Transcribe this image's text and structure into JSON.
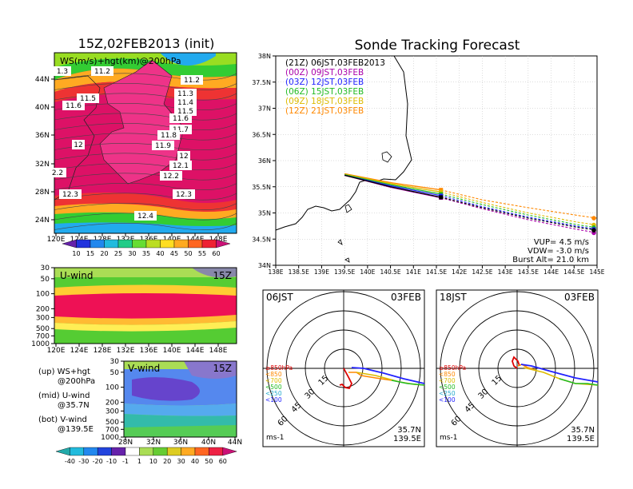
{
  "left_panel": {
    "title": "15Z,02FEB2013 (init)",
    "ws_map": {
      "label": "WS(m/s)+hgt(km)@200hPa",
      "lat_ticks": [
        "44N",
        "40N",
        "36N",
        "32N",
        "28N",
        "24N"
      ],
      "lon_ticks": [
        "120E",
        "124E",
        "128E",
        "132E",
        "136E",
        "140E",
        "144E",
        "148E"
      ],
      "height_labels": [
        "1.3",
        "11.2",
        "11.2",
        "11.3",
        "11.5",
        "11.4",
        "11.6",
        "11.5",
        "11.6",
        "11.7",
        "12",
        "11.8",
        "11.9",
        "12",
        "12.1",
        "2.2",
        "12.2",
        "12.3",
        "12.3",
        "12.4"
      ],
      "colorbar_labels": [
        "10",
        "15",
        "20",
        "25",
        "30",
        "35",
        "40",
        "45",
        "50",
        "55",
        "60"
      ]
    },
    "u_wind": {
      "label": "U-wind",
      "time": "15Z",
      "p_ticks": [
        "30",
        "50",
        "100",
        "200",
        "300",
        "500",
        "700",
        "1000"
      ],
      "lon_ticks": [
        "120E",
        "124E",
        "128E",
        "132E",
        "136E",
        "140E",
        "144E",
        "148E"
      ]
    },
    "v_wind": {
      "label": "V-wind",
      "time": "15Z",
      "p_ticks": [
        "30",
        "50",
        "100",
        "200",
        "300",
        "500",
        "700",
        "1000"
      ],
      "lat_ticks": [
        "28N",
        "32N",
        "36N",
        "40N",
        "44N"
      ],
      "legend": [
        {
          "top": "(up) WS+hgt",
          "bot": "@200hPa"
        },
        {
          "top": "(mid) U-wind",
          "bot": "@35.7N"
        },
        {
          "top": "(bot) V-wind",
          "bot": "@139.5E"
        }
      ],
      "colorbar_labels": [
        "-40",
        "-30",
        "-20",
        "-10",
        "-1",
        "1",
        "10",
        "20",
        "30",
        "40",
        "50",
        "60"
      ]
    }
  },
  "tracking": {
    "title": "Sonde Tracking Forecast",
    "lat_ticks": [
      "38N",
      "37.5N",
      "37N",
      "36.5N",
      "36N",
      "35.5N",
      "35N",
      "34.5N",
      "34N"
    ],
    "lon_ticks": [
      "138E",
      "138.5E",
      "139E",
      "139.5E",
      "140E",
      "140.5E",
      "141E",
      "141.5E",
      "142E",
      "142.5E",
      "143E",
      "143.5E",
      "144E",
      "144.5E",
      "145E"
    ],
    "legend": [
      {
        "text": "(21Z) 06JST,03FEB2013",
        "color": "#000000"
      },
      {
        "text": "(00Z) 09JST,03FEB",
        "color": "#aa00aa"
      },
      {
        "text": "(03Z) 12JST,03FEB",
        "color": "#2222ff"
      },
      {
        "text": "(06Z) 15JST,03FEB",
        "color": "#22bb22"
      },
      {
        "text": "(09Z) 18JST,03FEB",
        "color": "#ddbb00"
      },
      {
        "text": "(12Z) 21JST,03FEB",
        "color": "#ff8800"
      }
    ],
    "info": [
      "VUP= 4.5 m/s",
      "VDW= -3.0 m/s",
      "Burst Alt= 21.0 km"
    ]
  },
  "polar_left": {
    "time": "06JST",
    "date": "03FEB",
    "ring_labels": [
      "15",
      "30",
      "45",
      "60"
    ],
    "levels": [
      {
        "text": "≥850hPa",
        "color": "#dd0000"
      },
      {
        "text": "<850",
        "color": "#ff8800"
      },
      {
        "text": "<700",
        "color": "#ddbb00"
      },
      {
        "text": "<500",
        "color": "#22bb22"
      },
      {
        "text": "<250",
        "color": "#22aacc"
      },
      {
        "text": "<100",
        "color": "#2222ff"
      }
    ],
    "unit": "ms-1",
    "lat": "35.7N",
    "lon": "139.5E"
  },
  "polar_right": {
    "time": "18JST",
    "date": "03FEB",
    "ring_labels": [
      "15",
      "30",
      "45",
      "60"
    ],
    "levels": [
      {
        "text": "≥850hPa",
        "color": "#dd0000"
      },
      {
        "text": "<850",
        "color": "#ff8800"
      },
      {
        "text": "<700",
        "color": "#ddbb00"
      },
      {
        "text": "<500",
        "color": "#22bb22"
      },
      {
        "text": "<250",
        "color": "#22aacc"
      },
      {
        "text": "<100",
        "color": "#2222ff"
      }
    ],
    "unit": "ms-1",
    "lat": "35.7N",
    "lon": "139.5E"
  },
  "chart_data": [
    {
      "type": "heatmap",
      "title": "15Z,02FEB2013 (init)",
      "subtitle": "WS(m/s)+hgt(km)@200hPa",
      "x_range": [
        "120E",
        "148E"
      ],
      "y_range": [
        "22N",
        "47N"
      ],
      "color_levels": [
        10,
        15,
        20,
        25,
        30,
        35,
        40,
        45,
        50,
        55,
        60
      ]
    },
    {
      "type": "heatmap",
      "title": "U-wind",
      "x_range": [
        "120E",
        "148E"
      ],
      "ylim": [
        1000,
        30
      ]
    },
    {
      "type": "heatmap",
      "title": "V-wind",
      "x_range": [
        "28N",
        "44N"
      ],
      "ylim": [
        1000,
        30
      ],
      "color_levels": [
        -40,
        -30,
        -20,
        -10,
        -1,
        1,
        10,
        20,
        30,
        40,
        50,
        60
      ]
    },
    {
      "type": "line",
      "title": "Sonde Tracking Forecast",
      "xlim": [
        138,
        145
      ],
      "ylim": [
        34,
        38
      ],
      "series": [
        {
          "name": "(21Z) 06JST,03FEB2013",
          "color": "#000000",
          "x": [
            139.5,
            140.5,
            141.6,
            142.5,
            143.5,
            144.6,
            145.0
          ],
          "y": [
            35.72,
            35.5,
            35.3,
            35.1,
            34.9,
            34.72,
            34.67
          ]
        },
        {
          "name": "(00Z) 09JST,03FEB",
          "color": "#aa00aa",
          "x": [
            139.5,
            140.5,
            141.6,
            142.5,
            143.5,
            144.6,
            145.0
          ],
          "y": [
            35.72,
            35.49,
            35.29,
            35.08,
            34.87,
            34.68,
            34.62
          ]
        },
        {
          "name": "(03Z) 12JST,03FEB",
          "color": "#2222ff",
          "x": [
            139.5,
            140.5,
            141.6,
            142.5,
            143.5,
            144.6,
            145.0
          ],
          "y": [
            35.72,
            35.52,
            35.33,
            35.12,
            34.92,
            34.74,
            34.69
          ]
        },
        {
          "name": "(06Z) 15JST,03FEB",
          "color": "#22bb22",
          "x": [
            139.5,
            140.5,
            141.6,
            142.5,
            143.5,
            144.6,
            145.0
          ],
          "y": [
            35.73,
            35.54,
            35.36,
            35.16,
            34.96,
            34.77,
            34.72
          ]
        },
        {
          "name": "(09Z) 18JST,03FEB",
          "color": "#ddbb00",
          "x": [
            139.5,
            140.5,
            141.6,
            142.5,
            143.5,
            144.6,
            145.0
          ],
          "y": [
            35.74,
            35.56,
            35.4,
            35.2,
            35.0,
            34.82,
            34.77
          ]
        },
        {
          "name": "(12Z) 21JST,03FEB",
          "color": "#ff8800",
          "x": [
            139.5,
            140.5,
            141.6,
            142.5,
            143.5,
            144.6,
            145.0
          ],
          "y": [
            35.75,
            35.58,
            35.44,
            35.25,
            35.1,
            34.95,
            34.9
          ]
        }
      ]
    }
  ]
}
